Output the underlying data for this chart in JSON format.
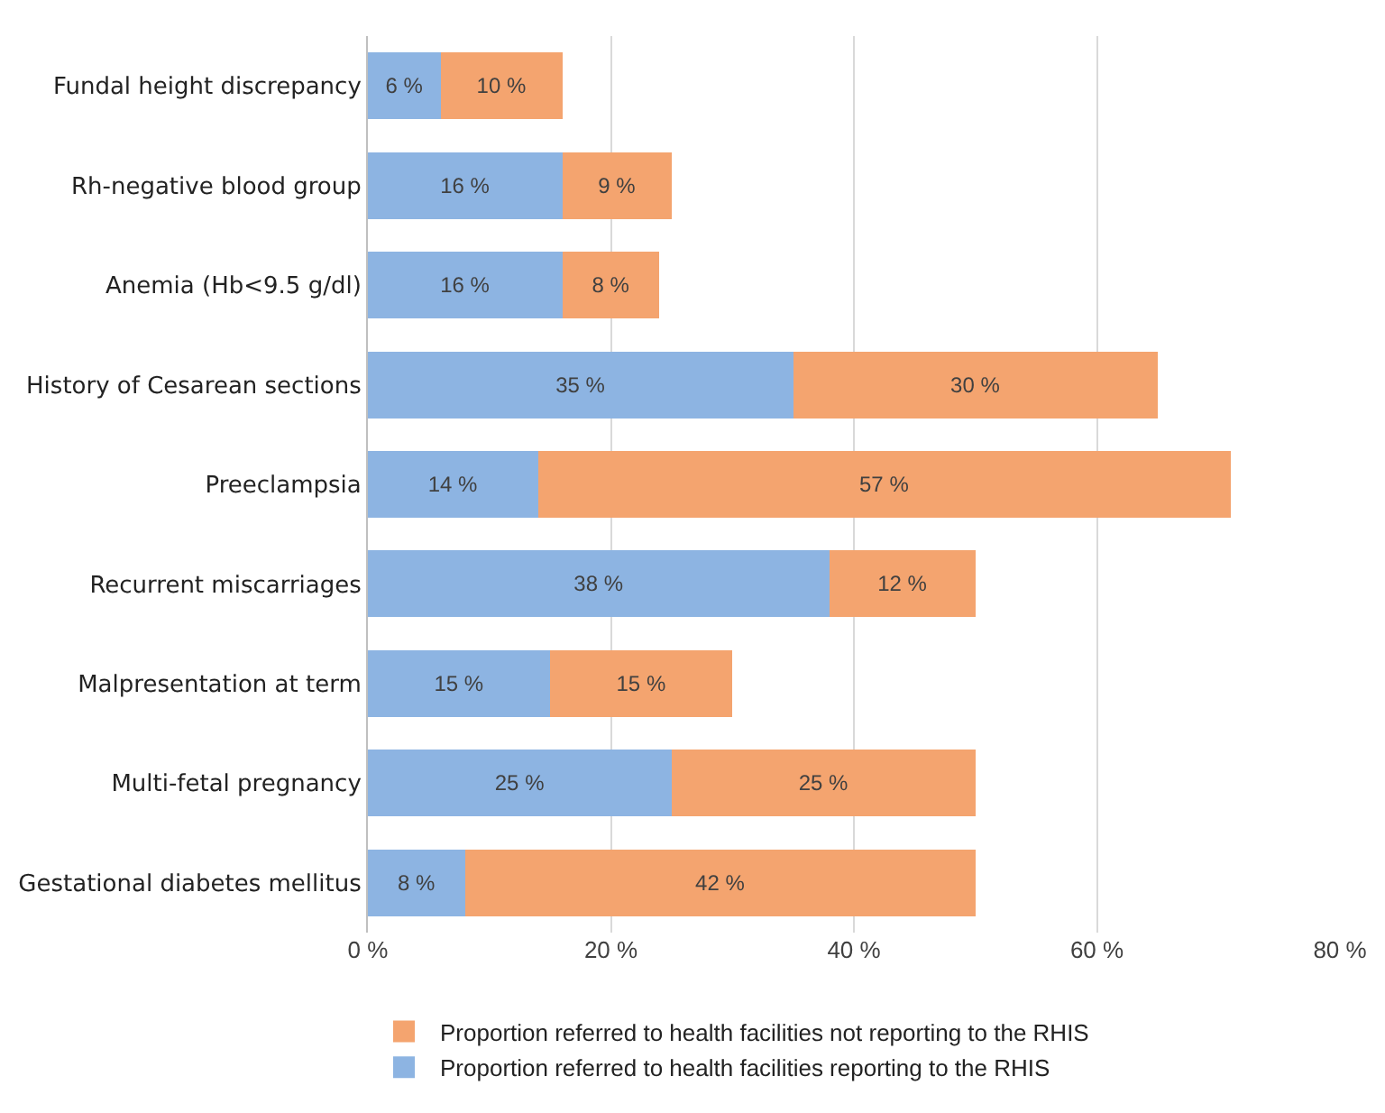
{
  "chart_data": {
    "type": "bar",
    "orientation": "horizontal",
    "stacked": true,
    "categories": [
      "Fundal height discrepancy",
      "Rh-negative blood group",
      "Anemia (Hb<9.5 g/dl)",
      "History of Cesarean sections",
      "Preeclampsia",
      "Recurrent miscarriages",
      "Malpresentation at term",
      "Multi-fetal pregnancy",
      "Gestational diabetes mellitus"
    ],
    "series": [
      {
        "name": "Proportion referred to health facilities reporting to the RHIS",
        "color": "#8db4e2",
        "values": [
          6,
          16,
          16,
          35,
          14,
          38,
          15,
          25,
          8
        ],
        "value_labels": [
          "6 %",
          "16 %",
          "16 %",
          "35 %",
          "14 %",
          "38 %",
          "15 %",
          "25 %",
          "8 %"
        ]
      },
      {
        "name": "Proportion referred to health facilities not reporting to the RHIS",
        "color": "#f4a46f",
        "values": [
          10,
          9,
          8,
          30,
          57,
          12,
          15,
          25,
          42
        ],
        "value_labels": [
          "10 %",
          "9 %",
          "8 %",
          "30 %",
          "57 %",
          "12 %",
          "15 %",
          "25 %",
          "42 %"
        ]
      }
    ],
    "xlim": [
      0,
      80
    ],
    "xticks": [
      {
        "value": 0,
        "label": "0 %"
      },
      {
        "value": 20,
        "label": "20 %"
      },
      {
        "value": 40,
        "label": "40 %"
      },
      {
        "value": 60,
        "label": "60 %"
      },
      {
        "value": 80,
        "label": "80 %"
      }
    ],
    "grid": "x",
    "legend": "bottom"
  }
}
